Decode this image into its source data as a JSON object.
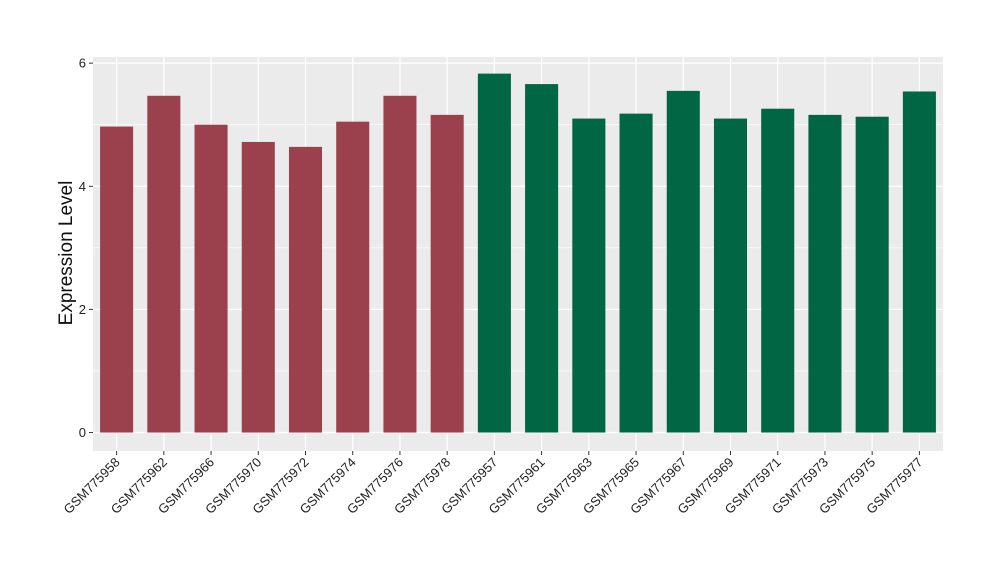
{
  "chart_data": {
    "type": "bar",
    "title": "",
    "xlabel": "",
    "ylabel": "Expression Level",
    "ylim": [
      -0.3,
      6.1
    ],
    "yticks": [
      0,
      2,
      4,
      6
    ],
    "ytick_labels": [
      "0",
      "2",
      "4",
      "6"
    ],
    "grid": true,
    "categories": [
      "GSM775958",
      "GSM775962",
      "GSM775966",
      "GSM775970",
      "GSM775972",
      "GSM775974",
      "GSM775976",
      "GSM775978",
      "GSM775957",
      "GSM775961",
      "GSM775963",
      "GSM775965",
      "GSM775967",
      "GSM775969",
      "GSM775971",
      "GSM775973",
      "GSM775975",
      "GSM775977"
    ],
    "values": [
      4.97,
      5.47,
      5.0,
      4.72,
      4.64,
      5.05,
      5.47,
      5.16,
      5.83,
      5.66,
      5.1,
      5.18,
      5.55,
      5.1,
      5.26,
      5.16,
      5.13,
      5.54
    ],
    "bar_colors": [
      "#9B414E",
      "#9B414E",
      "#9B414E",
      "#9B414E",
      "#9B414E",
      "#9B414E",
      "#9B414E",
      "#9B414E",
      "#006643",
      "#006643",
      "#006643",
      "#006643",
      "#006643",
      "#006643",
      "#006643",
      "#006643",
      "#006643",
      "#006643"
    ],
    "panel_background": "#EBEBEB",
    "grid_color": "#FFFFFF"
  }
}
